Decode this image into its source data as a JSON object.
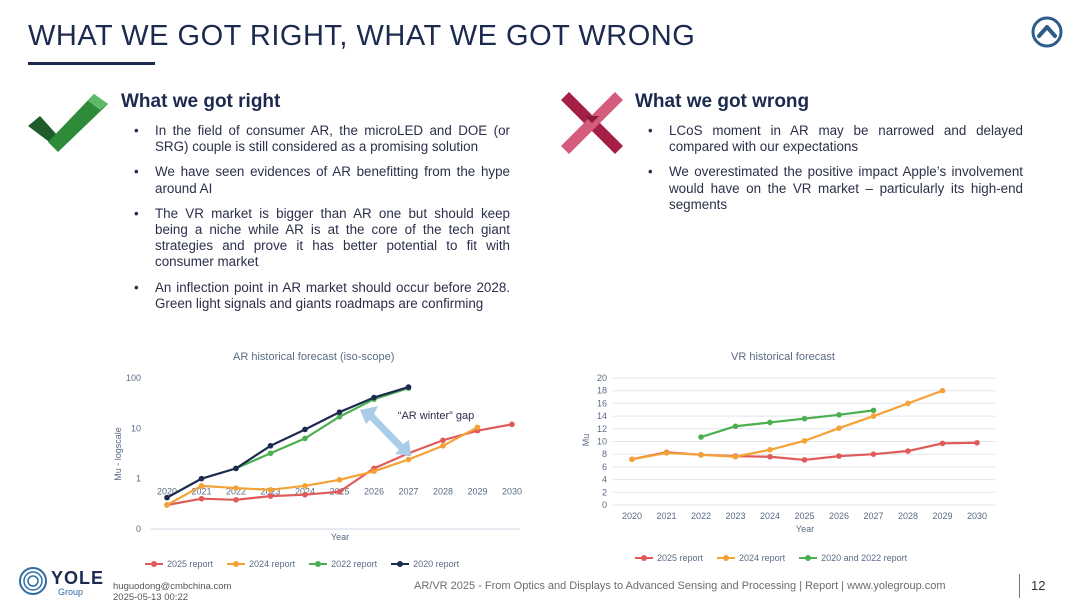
{
  "page": {
    "title": "WHAT WE GOT RIGHT, WHAT WE GOT WRONG",
    "right_heading": "What we got right",
    "wrong_heading": "What we got wrong",
    "right_bullets": [
      "In the field of consumer AR, the microLED and DOE (or SRG) couple is still considered as a promising solution",
      "We have seen evidences of AR benefitting from the hype around AI",
      "The VR market is bigger than AR one but should keep being a niche while AR is at the core of the tech giant strategies and prove it has better potential to fit with consumer market",
      "An inflection point in AR market should occur before 2028. Green light signals and giants roadmaps are confirming"
    ],
    "wrong_bullets": [
      "LCoS moment in AR may be narrowed and delayed compared with our expectations",
      "We overestimated the positive impact Apple’s involvement would have on the VR market – particularly its high-end segments"
    ],
    "footer": {
      "logo_text": "YOLE",
      "logo_sub": "Group",
      "user": "huguodong@cmbchina.com",
      "timestamp": "2025-05-13 00:22",
      "citation": "AR/VR 2025 - From Optics and Displays to Advanced Sensing and Processing | Report | www.yolegroup.com",
      "page_number": "12"
    },
    "colors": {
      "navy": "#1b2a4e",
      "check": "#2e7d32",
      "cross": "#b0244f"
    },
    "icons": [
      "checkmark-icon",
      "cross-icon",
      "up-arrow-icon"
    ]
  },
  "chart_data": [
    {
      "type": "line",
      "title": "AR historical forecast (iso-scope)",
      "xlabel": "Year",
      "ylabel": "Mu - logscale",
      "yscale": "log",
      "yticks": [
        "0",
        "1",
        "10",
        "100"
      ],
      "x": [
        2020,
        2021,
        2022,
        2023,
        2024,
        2025,
        2026,
        2027,
        2028,
        2029,
        2030
      ],
      "annotation": "“AR winter” gap",
      "series": [
        {
          "name": "2025 report",
          "color": "#e05a5a",
          "values": [
            0.3,
            0.4,
            0.38,
            0.45,
            0.48,
            0.55,
            1.6,
            3.2,
            5.8,
            9.0,
            12.0
          ]
        },
        {
          "name": "2024 report",
          "color": "#f4a236",
          "values": [
            0.3,
            0.72,
            0.65,
            0.6,
            0.72,
            0.95,
            1.4,
            2.4,
            4.5,
            10.5,
            null
          ]
        },
        {
          "name": "2022 report",
          "color": "#4caf50",
          "values": [
            null,
            null,
            1.6,
            3.2,
            6.3,
            17.0,
            38.0,
            63.0,
            null,
            null,
            null
          ]
        },
        {
          "name": "2020 report",
          "color": "#1b2a4e",
          "values": [
            0.42,
            1.0,
            1.6,
            4.5,
            9.5,
            21.0,
            41.0,
            66.0,
            null,
            null,
            null
          ]
        }
      ]
    },
    {
      "type": "line",
      "title": "VR historical forecast",
      "xlabel": "Year",
      "ylabel": "Mu",
      "ylim": [
        0,
        20
      ],
      "yticks": [
        0,
        2,
        4,
        6,
        8,
        10,
        12,
        14,
        16,
        18,
        20
      ],
      "x": [
        2020,
        2021,
        2022,
        2023,
        2024,
        2025,
        2026,
        2027,
        2028,
        2029,
        2030
      ],
      "series": [
        {
          "name": "2025 report",
          "color": "#e05a5a",
          "values": [
            7.2,
            8.3,
            7.9,
            7.7,
            7.6,
            7.1,
            7.7,
            8.0,
            8.5,
            9.7,
            9.8
          ]
        },
        {
          "name": "2024 report",
          "color": "#f4a236",
          "values": [
            7.2,
            8.2,
            7.9,
            7.6,
            8.7,
            10.1,
            12.1,
            14.0,
            16.0,
            18.0,
            null
          ]
        },
        {
          "name": "2020 and 2022 report",
          "color": "#4caf50",
          "values": [
            null,
            null,
            10.7,
            12.4,
            13.0,
            13.6,
            14.2,
            14.9,
            null,
            null,
            null
          ]
        }
      ]
    }
  ]
}
